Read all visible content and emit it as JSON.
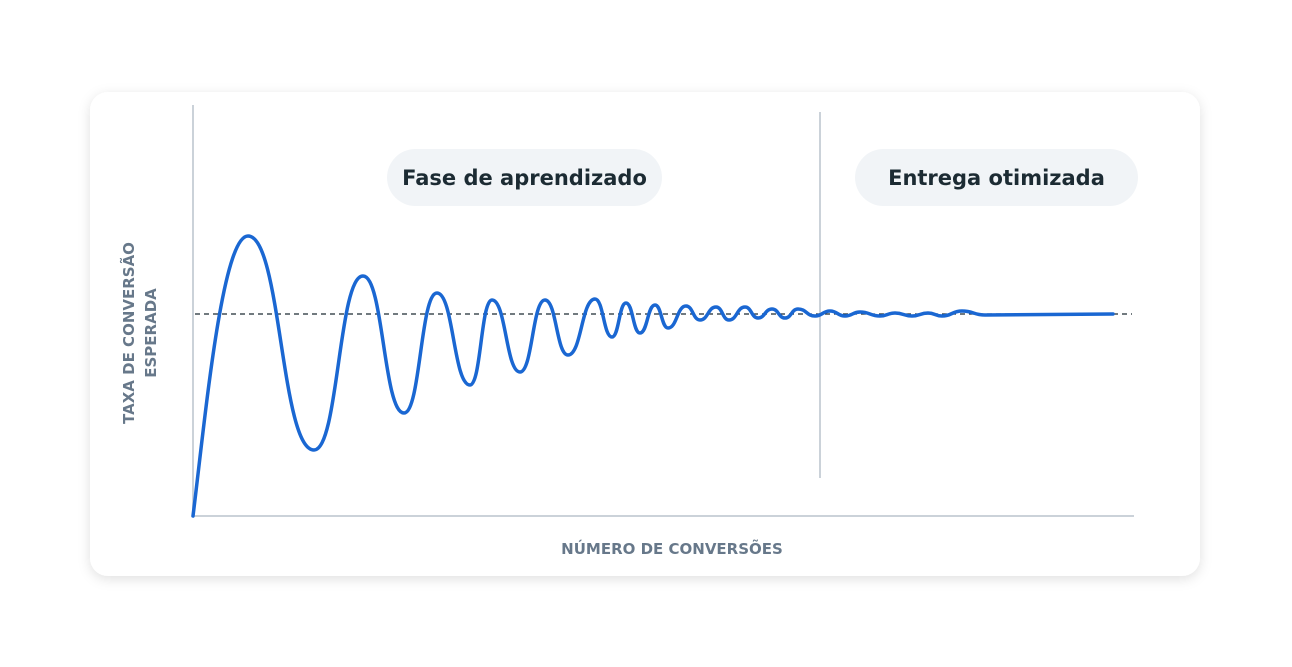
{
  "phases": [
    "Fase de aprendizado",
    "Entrega otimizada"
  ],
  "y_axis_label": [
    "TAXA DE CONVERSÃO",
    "ESPERADA"
  ],
  "x_axis_label": "NÚMERO DE CONVERSÕES"
}
